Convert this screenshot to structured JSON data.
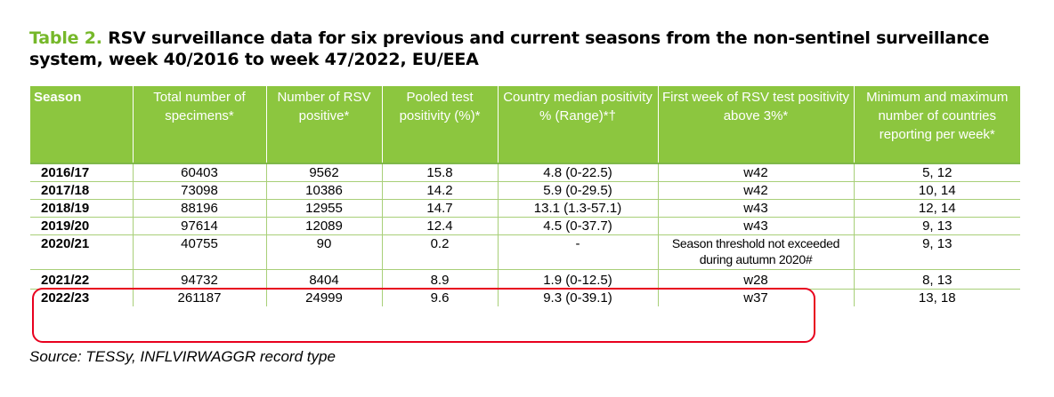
{
  "caption": {
    "label": "Table 2.",
    "text": "RSV surveillance data for six previous and current seasons from the non-sentinel surveillance system, week 40/2016 to week 47/2022, EU/EEA"
  },
  "table": {
    "headers": [
      "Season",
      "Total number of specimens*",
      "Number of RSV positive*",
      "Pooled test positivity (%)*",
      "Country median positivity % (Range)*†",
      "First week of RSV test positivity above 3%*",
      "Minimum and maximum number of countries reporting per week*"
    ],
    "rows": [
      [
        "2016/17",
        "60403",
        "9562",
        "15.8",
        "4.8 (0-22.5)",
        "w42",
        "5, 12"
      ],
      [
        "2017/18",
        "73098",
        "10386",
        "14.2",
        "5.9 (0-29.5)",
        "w42",
        "10, 14"
      ],
      [
        "2018/19",
        "88196",
        "12955",
        "14.7",
        "13.1 (1.3-57.1)",
        "w43",
        "12, 14"
      ],
      [
        "2019/20",
        "97614",
        "12089",
        "12.4",
        "4.5 (0-37.7)",
        "w43",
        "9, 13"
      ],
      [
        "2020/21",
        "40755",
        "90",
        "0.2",
        "-",
        "Season threshold not exceeded during autumn 2020#",
        "9, 13"
      ],
      [
        "2021/22",
        "94732",
        "8404",
        "8.9",
        "1.9 (0-12.5)",
        "w28",
        "8, 13"
      ],
      [
        "2022/23",
        "261187",
        "24999",
        "9.6",
        "9.3 (0-39.1)",
        "w37",
        "13, 18"
      ]
    ]
  },
  "source": "Source: TESSy, INFLVIRWAGGR record type",
  "colors": {
    "header_bg": "#8cc63f",
    "label_green": "#76b82a",
    "highlight_red": "#e8001e"
  }
}
